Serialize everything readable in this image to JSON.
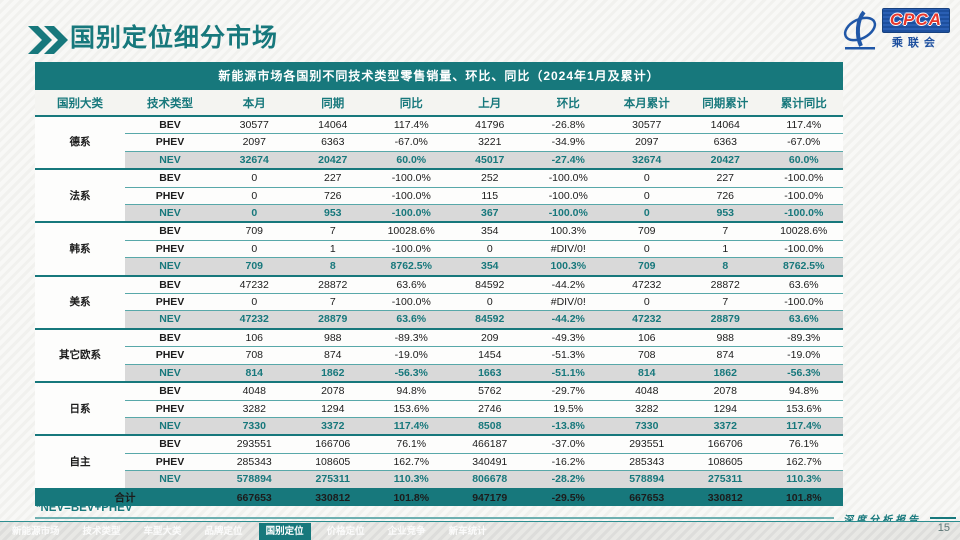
{
  "page": {
    "title": "国别定位细分市场",
    "footnote": "*NEV=BEV+PHEV",
    "report_label": "深度分析报告",
    "page_number": "15"
  },
  "logo": {
    "acronym": "CPCA",
    "org_name": "乘联会"
  },
  "colors": {
    "accent_teal": "#17787c",
    "nev_row_bg": "#d9d9d9",
    "logo_blue": "#1d4f9e",
    "logo_red": "#e8372c"
  },
  "table": {
    "title": "新能源市场各国别不同技术类型零售销量、环比、同比（2024年1月及累计）",
    "columns": [
      "国别大类",
      "技术类型",
      "本月",
      "同期",
      "同比",
      "上月",
      "环比",
      "本月累计",
      "同期累计",
      "累计同比"
    ],
    "groups": [
      {
        "name": "德系",
        "rows": [
          [
            "BEV",
            "30577",
            "14064",
            "117.4%",
            "41796",
            "-26.8%",
            "30577",
            "14064",
            "117.4%"
          ],
          [
            "PHEV",
            "2097",
            "6363",
            "-67.0%",
            "3221",
            "-34.9%",
            "2097",
            "6363",
            "-67.0%"
          ],
          [
            "NEV",
            "32674",
            "20427",
            "60.0%",
            "45017",
            "-27.4%",
            "32674",
            "20427",
            "60.0%"
          ]
        ]
      },
      {
        "name": "法系",
        "rows": [
          [
            "BEV",
            "0",
            "227",
            "-100.0%",
            "252",
            "-100.0%",
            "0",
            "227",
            "-100.0%"
          ],
          [
            "PHEV",
            "0",
            "726",
            "-100.0%",
            "115",
            "-100.0%",
            "0",
            "726",
            "-100.0%"
          ],
          [
            "NEV",
            "0",
            "953",
            "-100.0%",
            "367",
            "-100.0%",
            "0",
            "953",
            "-100.0%"
          ]
        ]
      },
      {
        "name": "韩系",
        "rows": [
          [
            "BEV",
            "709",
            "7",
            "10028.6%",
            "354",
            "100.3%",
            "709",
            "7",
            "10028.6%"
          ],
          [
            "PHEV",
            "0",
            "1",
            "-100.0%",
            "0",
            "#DIV/0!",
            "0",
            "1",
            "-100.0%"
          ],
          [
            "NEV",
            "709",
            "8",
            "8762.5%",
            "354",
            "100.3%",
            "709",
            "8",
            "8762.5%"
          ]
        ]
      },
      {
        "name": "美系",
        "rows": [
          [
            "BEV",
            "47232",
            "28872",
            "63.6%",
            "84592",
            "-44.2%",
            "47232",
            "28872",
            "63.6%"
          ],
          [
            "PHEV",
            "0",
            "7",
            "-100.0%",
            "0",
            "#DIV/0!",
            "0",
            "7",
            "-100.0%"
          ],
          [
            "NEV",
            "47232",
            "28879",
            "63.6%",
            "84592",
            "-44.2%",
            "47232",
            "28879",
            "63.6%"
          ]
        ]
      },
      {
        "name": "其它欧系",
        "rows": [
          [
            "BEV",
            "106",
            "988",
            "-89.3%",
            "209",
            "-49.3%",
            "106",
            "988",
            "-89.3%"
          ],
          [
            "PHEV",
            "708",
            "874",
            "-19.0%",
            "1454",
            "-51.3%",
            "708",
            "874",
            "-19.0%"
          ],
          [
            "NEV",
            "814",
            "1862",
            "-56.3%",
            "1663",
            "-51.1%",
            "814",
            "1862",
            "-56.3%"
          ]
        ]
      },
      {
        "name": "日系",
        "rows": [
          [
            "BEV",
            "4048",
            "2078",
            "94.8%",
            "5762",
            "-29.7%",
            "4048",
            "2078",
            "94.8%"
          ],
          [
            "PHEV",
            "3282",
            "1294",
            "153.6%",
            "2746",
            "19.5%",
            "3282",
            "1294",
            "153.6%"
          ],
          [
            "NEV",
            "7330",
            "3372",
            "117.4%",
            "8508",
            "-13.8%",
            "7330",
            "3372",
            "117.4%"
          ]
        ]
      },
      {
        "name": "自主",
        "rows": [
          [
            "BEV",
            "293551",
            "166706",
            "76.1%",
            "466187",
            "-37.0%",
            "293551",
            "166706",
            "76.1%"
          ],
          [
            "PHEV",
            "285343",
            "108605",
            "162.7%",
            "340491",
            "-16.2%",
            "285343",
            "108605",
            "162.7%"
          ],
          [
            "NEV",
            "578894",
            "275311",
            "110.3%",
            "806678",
            "-28.2%",
            "578894",
            "275311",
            "110.3%"
          ]
        ]
      }
    ],
    "total": {
      "label": "合计",
      "values": [
        "667653",
        "330812",
        "101.8%",
        "947179",
        "-29.5%",
        "667653",
        "330812",
        "101.8%"
      ]
    },
    "watermark_text": "CPCA 乘联会"
  },
  "footer": {
    "tabs": [
      {
        "label": "新能源市场",
        "active": false
      },
      {
        "label": "技术类型",
        "active": false
      },
      {
        "label": "车型大类",
        "active": false
      },
      {
        "label": "品牌定位",
        "active": false
      },
      {
        "label": "国别定位",
        "active": true
      },
      {
        "label": "价格定位",
        "active": false
      },
      {
        "label": "企业竞争",
        "active": false
      },
      {
        "label": "新车统计",
        "active": false
      }
    ]
  }
}
